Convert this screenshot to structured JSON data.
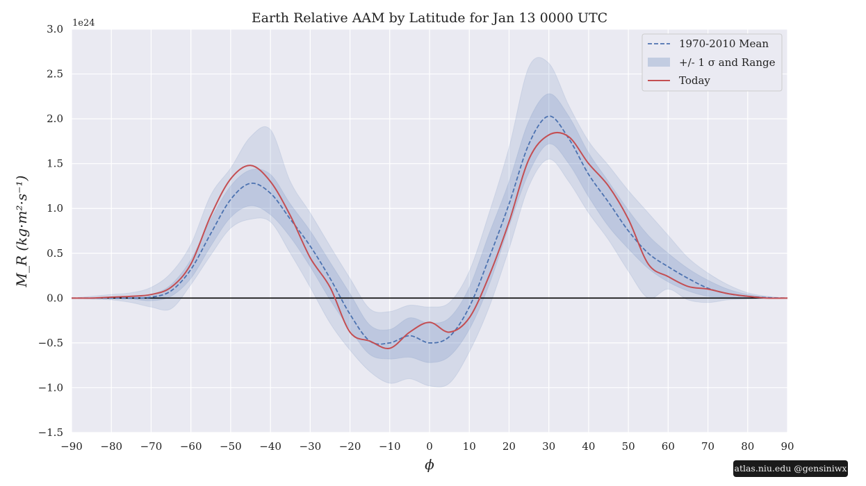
{
  "credit": "atlas.niu.edu  @gensiniwx",
  "colors": {
    "background": "#ffffff",
    "plot_bg": "#eaeaf2",
    "grid": "#ffffff",
    "mean": "#4c72b0",
    "band": "#4c72b0",
    "today": "#c44e52",
    "zero_line": "#000000"
  },
  "chart_data": {
    "type": "line",
    "title": "Earth Relative AAM by Latitude for Jan 13 0000 UTC",
    "xlabel": "ϕ",
    "ylabel": "M_R (kg·m²·s⁻¹)",
    "y_offset_label": "1e24",
    "y_scale_factor": 1e+24,
    "xlim": [
      -90,
      90
    ],
    "ylim": [
      -1.5,
      3.0
    ],
    "xticks": [
      -90,
      -80,
      -70,
      -60,
      -50,
      -40,
      -30,
      -20,
      -10,
      0,
      10,
      20,
      30,
      40,
      50,
      60,
      70,
      80,
      90
    ],
    "yticks": [
      -1.5,
      -1.0,
      -0.5,
      0.0,
      0.5,
      1.0,
      1.5,
      2.0,
      2.5,
      3.0
    ],
    "xtick_labels": [
      "−90",
      "−80",
      "−70",
      "−60",
      "−50",
      "−40",
      "−30",
      "−20",
      "−10",
      "0",
      "10",
      "20",
      "30",
      "40",
      "50",
      "60",
      "70",
      "80",
      "90"
    ],
    "ytick_labels": [
      "−1.5",
      "−1.0",
      "−0.5",
      "0.0",
      "0.5",
      "1.0",
      "1.5",
      "2.0",
      "2.5",
      "3.0"
    ],
    "grid": true,
    "legend_position": "top-right",
    "legend": [
      {
        "label": "1970-2010 Mean",
        "style": "dashed"
      },
      {
        "label": "+/- 1 σ and Range",
        "style": "band"
      },
      {
        "label": "Today",
        "style": "solid"
      }
    ],
    "x": [
      -90,
      -85,
      -80,
      -75,
      -70,
      -65,
      -60,
      -55,
      -50,
      -45,
      -40,
      -35,
      -30,
      -25,
      -20,
      -15,
      -10,
      -5,
      0,
      5,
      10,
      15,
      20,
      25,
      30,
      35,
      40,
      45,
      50,
      55,
      60,
      65,
      70,
      75,
      80,
      85,
      90
    ],
    "series": [
      {
        "name": "1970-2010 Mean",
        "role": "mean",
        "values": [
          0.0,
          0.0,
          0.0,
          0.0,
          0.01,
          0.08,
          0.32,
          0.72,
          1.1,
          1.28,
          1.17,
          0.88,
          0.58,
          0.22,
          -0.18,
          -0.48,
          -0.5,
          -0.42,
          -0.5,
          -0.43,
          -0.1,
          0.45,
          1.05,
          1.72,
          2.03,
          1.78,
          1.38,
          1.07,
          0.75,
          0.5,
          0.35,
          0.22,
          0.11,
          0.05,
          0.02,
          0.005,
          0.0
        ]
      },
      {
        "name": "Today",
        "role": "today",
        "values": [
          0.0,
          0.0,
          0.01,
          0.02,
          0.04,
          0.12,
          0.38,
          0.92,
          1.33,
          1.48,
          1.3,
          0.92,
          0.45,
          0.12,
          -0.38,
          -0.48,
          -0.56,
          -0.38,
          -0.27,
          -0.38,
          -0.22,
          0.25,
          0.85,
          1.55,
          1.82,
          1.8,
          1.5,
          1.25,
          0.88,
          0.38,
          0.24,
          0.13,
          0.1,
          0.05,
          0.02,
          0.0,
          0.0
        ]
      },
      {
        "name": "Mean - 1 σ",
        "role": "sigma_low",
        "values": [
          0.0,
          0.0,
          0.0,
          -0.01,
          -0.03,
          0.02,
          0.22,
          0.58,
          0.9,
          1.03,
          0.93,
          0.68,
          0.35,
          -0.02,
          -0.35,
          -0.63,
          -0.68,
          -0.66,
          -0.72,
          -0.65,
          -0.35,
          0.15,
          0.8,
          1.4,
          1.72,
          1.5,
          1.13,
          0.8,
          0.55,
          0.33,
          0.18,
          0.08,
          0.02,
          0.01,
          0.0,
          0.0,
          0.0
        ]
      },
      {
        "name": "Mean + 1 σ",
        "role": "sigma_high",
        "values": [
          0.0,
          0.0,
          0.01,
          0.02,
          0.04,
          0.15,
          0.43,
          0.88,
          1.25,
          1.43,
          1.38,
          1.05,
          0.75,
          0.4,
          0.05,
          -0.3,
          -0.35,
          -0.22,
          -0.28,
          -0.22,
          0.12,
          0.72,
          1.3,
          1.98,
          2.28,
          2.03,
          1.62,
          1.3,
          0.98,
          0.7,
          0.5,
          0.33,
          0.2,
          0.1,
          0.04,
          0.01,
          0.0
        ]
      },
      {
        "name": "Range min",
        "role": "range_low",
        "values": [
          0.0,
          -0.01,
          -0.02,
          -0.05,
          -0.1,
          -0.12,
          0.15,
          0.48,
          0.78,
          0.88,
          0.85,
          0.5,
          0.12,
          -0.28,
          -0.58,
          -0.82,
          -0.95,
          -0.9,
          -0.98,
          -0.95,
          -0.6,
          -0.1,
          0.55,
          1.25,
          1.55,
          1.3,
          0.95,
          0.65,
          0.3,
          0.0,
          0.1,
          -0.02,
          -0.05,
          -0.02,
          -0.01,
          0.0,
          0.0
        ]
      },
      {
        "name": "Range max",
        "role": "range_high",
        "values": [
          0.0,
          0.02,
          0.04,
          0.06,
          0.12,
          0.28,
          0.6,
          1.15,
          1.45,
          1.8,
          1.88,
          1.3,
          0.95,
          0.58,
          0.22,
          -0.12,
          -0.15,
          -0.08,
          -0.1,
          -0.05,
          0.3,
          0.95,
          1.68,
          2.58,
          2.62,
          2.15,
          1.75,
          1.48,
          1.2,
          0.95,
          0.7,
          0.45,
          0.28,
          0.15,
          0.06,
          0.02,
          0.0
        ]
      }
    ]
  }
}
